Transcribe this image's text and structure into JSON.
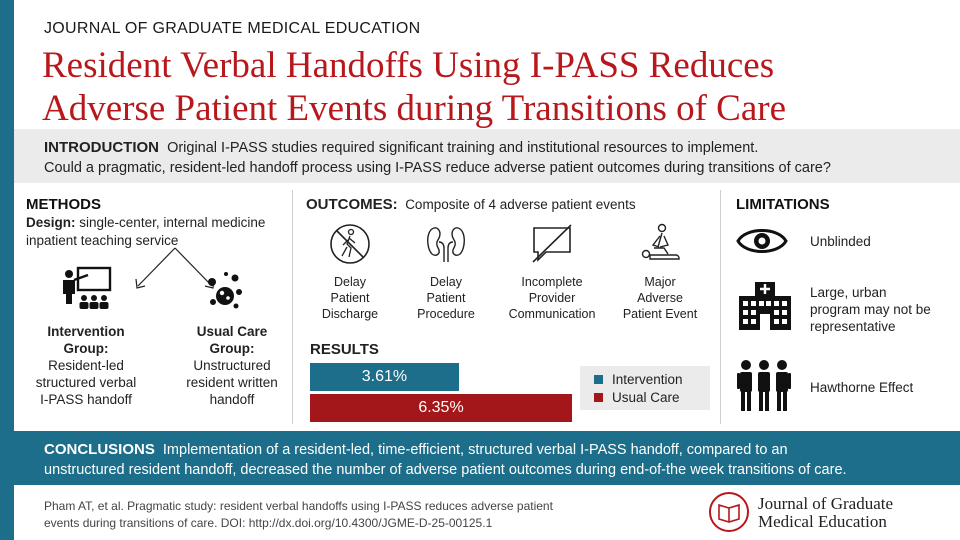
{
  "header": {
    "journal": "JOURNAL OF GRADUATE MEDICAL EDUCATION",
    "title_line1": "Resident Verbal Handoffs Using I-PASS Reduces",
    "title_line2": "Adverse Patient Events during Transitions of Care"
  },
  "intro": {
    "label": "INTRODUCTION",
    "line1": "Original I-PASS studies required significant training and institutional resources to implement.",
    "line2": "Could a pragmatic, resident-led handoff process using I-PASS reduce adverse patient outcomes during transitions of care?"
  },
  "methods": {
    "heading": "METHODS",
    "design_label": "Design:",
    "design_text": "single-center, internal medicine inpatient teaching service",
    "intervention": {
      "title_line1": "Intervention",
      "title_line2": "Group:",
      "desc": [
        "Resident-led",
        "structured verbal",
        "I-PASS handoff"
      ]
    },
    "usual": {
      "title_line1": "Usual Care",
      "title_line2": "Group:",
      "desc": [
        "Unstructured",
        "resident written",
        "handoff"
      ]
    }
  },
  "outcomes": {
    "heading": "OUTCOMES:",
    "subheading": "Composite of 4 adverse patient events",
    "items": [
      {
        "icon": "no-walking-icon",
        "lines": [
          "Delay",
          "Patient",
          "Discharge"
        ]
      },
      {
        "icon": "kidneys-icon",
        "lines": [
          "Delay",
          "Patient",
          "Procedure"
        ]
      },
      {
        "icon": "no-chat-icon",
        "lines": [
          "Incomplete",
          "Provider",
          "Communication"
        ]
      },
      {
        "icon": "cpr-icon",
        "lines": [
          "Major",
          "Adverse",
          "Patient Event"
        ]
      }
    ]
  },
  "results": {
    "heading": "RESULTS",
    "intervention_label": "3.61%",
    "usual_label": "6.35%",
    "intervention_value": 3.61,
    "usual_value": 6.35,
    "legend_intervention": "Intervention",
    "legend_usual": "Usual Care",
    "color_intervention": "#1d6e8a",
    "color_usual": "#a3161a"
  },
  "limitations": {
    "heading": "LIMITATIONS",
    "items": [
      {
        "icon": "eye-icon",
        "lines": [
          "Unblinded"
        ]
      },
      {
        "icon": "hospital-icon",
        "lines": [
          "Large, urban",
          "program may not be",
          "representative"
        ]
      },
      {
        "icon": "people-group-icon",
        "lines": [
          "Hawthorne Effect"
        ]
      }
    ]
  },
  "conclusions": {
    "label": "CONCLUSIONS",
    "line1": "Implementation of a resident-led, time-efficient, structured verbal I-PASS handoff, compared to an",
    "line2": "unstructured resident handoff, decreased the number of adverse patient outcomes during end-of-the week transitions of care."
  },
  "footer": {
    "citation_line1": "Pham AT, et al. Pragmatic study: resident verbal handoffs using I-PASS reduces adverse patient",
    "citation_line2": "events during transitions of care. DOI: http://dx.doi.org/10.4300/JGME-D-25-00125.1",
    "logo_line1": "Journal of Graduate",
    "logo_line2": "Medical Education"
  }
}
